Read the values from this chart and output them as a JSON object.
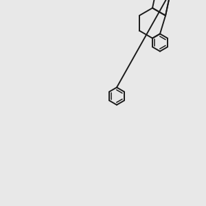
{
  "background_color": "#e8e8e8",
  "bond_color": "#1a1a1a",
  "nitrogen_color": "#0000ff",
  "sulfur_color": "#b8860b",
  "oxygen_color": "#ff0000",
  "figsize": [
    3.0,
    3.0
  ],
  "dpi": 100
}
